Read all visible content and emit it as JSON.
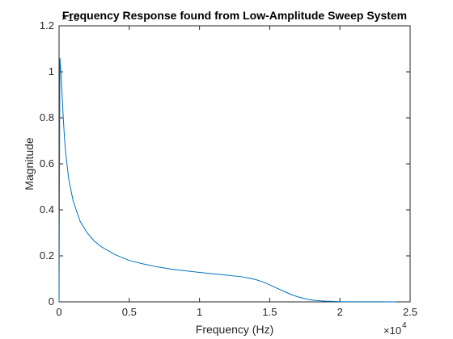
{
  "chart_data": {
    "type": "line",
    "title": "Frequency Response found from Low-Amplitude Sweep System",
    "xlabel": "Frequency (Hz)",
    "ylabel": "Magnitude",
    "xlim": [
      0,
      25000
    ],
    "ylim": [
      0,
      1.2
    ],
    "x_ticks": [
      0,
      5000,
      10000,
      15000,
      20000,
      25000
    ],
    "x_tick_labels": [
      "0",
      "0.5",
      "1",
      "1.5",
      "2",
      "2.5"
    ],
    "y_ticks": [
      0,
      0.2,
      0.4,
      0.6,
      0.8,
      1.0,
      1.2
    ],
    "y_tick_labels": [
      "0",
      "0.2",
      "0.4",
      "0.6",
      "0.8",
      "1",
      "1.2"
    ],
    "x_exponent_label": "×10",
    "x_exponent_power": "4",
    "y_exponent_label": "×10",
    "grid": false,
    "line_color": "#0072BD",
    "series": [
      {
        "x": [
          0,
          60,
          100,
          150,
          200,
          300,
          400,
          500,
          700,
          1000,
          1500,
          2000,
          2500,
          3000,
          4000,
          5000,
          6000,
          7000,
          8000,
          9000,
          10000,
          11000,
          12000,
          13000,
          13500,
          14000,
          14500,
          15000,
          15500,
          16000,
          16500,
          17000,
          17500,
          18000,
          18500,
          19000,
          19500,
          20000,
          21000,
          22000,
          23000,
          24000
        ],
        "y": [
          0,
          1.06,
          1.03,
          0.98,
          0.92,
          0.8,
          0.7,
          0.63,
          0.53,
          0.44,
          0.35,
          0.3,
          0.265,
          0.24,
          0.205,
          0.18,
          0.165,
          0.152,
          0.142,
          0.135,
          0.128,
          0.122,
          0.116,
          0.109,
          0.104,
          0.097,
          0.087,
          0.074,
          0.06,
          0.046,
          0.033,
          0.022,
          0.014,
          0.008,
          0.005,
          0.003,
          0.002,
          0.001,
          0.0006,
          0.0004,
          0.0003,
          0.0002
        ]
      }
    ]
  }
}
